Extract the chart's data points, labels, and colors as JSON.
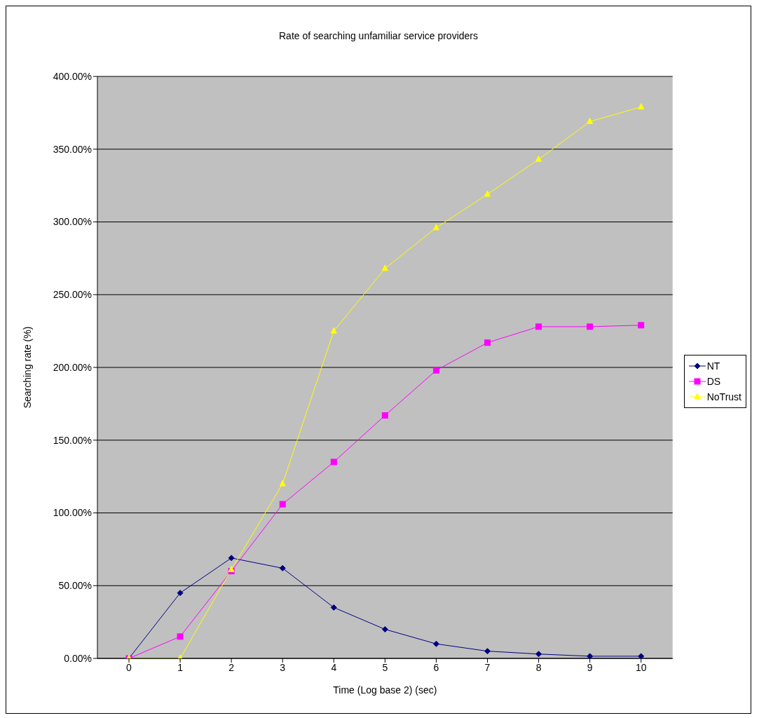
{
  "chart_data": {
    "type": "line",
    "title": "Rate of searching unfamiliar service providers",
    "xlabel": "Time (Log base 2) (sec)",
    "ylabel": "Searching rate (%)",
    "categories": [
      "0",
      "1",
      "2",
      "3",
      "4",
      "5",
      "6",
      "7",
      "8",
      "9",
      "10"
    ],
    "series": [
      {
        "name": "NT",
        "color": "#000080",
        "marker": "diamond",
        "values": [
          0,
          45,
          69,
          62,
          35,
          20,
          10,
          5,
          3,
          1.5,
          1.5
        ]
      },
      {
        "name": "DS",
        "color": "#ff00ff",
        "marker": "square",
        "values": [
          0,
          15,
          60,
          106,
          135,
          167,
          198,
          217,
          228,
          228,
          229
        ]
      },
      {
        "name": "NoTrust",
        "color": "#ffff00",
        "marker": "triangle",
        "values": [
          0,
          0,
          61,
          120,
          225,
          268,
          296,
          319,
          343,
          369,
          379
        ]
      }
    ],
    "ylim": [
      0,
      400
    ],
    "yticks": [
      {
        "value": 0,
        "label": "0.00%"
      },
      {
        "value": 50,
        "label": "50.00%"
      },
      {
        "value": 100,
        "label": "100.00%"
      },
      {
        "value": 150,
        "label": "150.00%"
      },
      {
        "value": 200,
        "label": "200.00%"
      },
      {
        "value": 250,
        "label": "250.00%"
      },
      {
        "value": 300,
        "label": "300.00%"
      },
      {
        "value": 350,
        "label": "350.00%"
      },
      {
        "value": 400,
        "label": "400.00%"
      }
    ],
    "grid": "y",
    "legend": "right",
    "line_style": "solid"
  }
}
